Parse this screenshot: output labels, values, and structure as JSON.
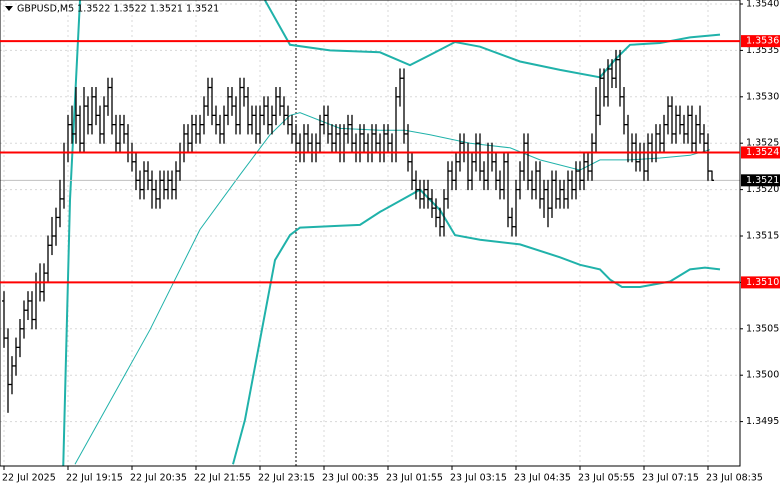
{
  "chart_data": {
    "type": "ohlc",
    "title": "GBPUSD,M5 1.3522 1.3522 1.3521 1.3521",
    "categories": [
      "22 Jul 2025",
      null,
      null,
      null,
      null,
      null,
      null,
      null,
      null,
      null,
      null,
      null,
      null,
      null,
      null,
      null,
      "22 Jul 19:15",
      null,
      null,
      null,
      null,
      null,
      null,
      null,
      null,
      null,
      null,
      null,
      null,
      null,
      null,
      null,
      "22 Jul 20:35",
      null,
      null,
      null,
      null,
      null,
      null,
      null,
      null,
      null,
      null,
      null,
      null,
      null,
      null,
      null,
      "22 Jul 21:55",
      null,
      null,
      null,
      null,
      null,
      null,
      null,
      null,
      null,
      null,
      null,
      null,
      null,
      null,
      null,
      "22 Jul 23:15",
      null,
      null,
      null,
      null,
      null,
      null,
      null,
      null,
      null,
      null,
      null,
      null,
      null,
      null,
      null,
      "23 Jul 00:35",
      null,
      null,
      null,
      null,
      null,
      null,
      null,
      null,
      null,
      null,
      null,
      null,
      null,
      null,
      null,
      "23 Jul 01:55",
      null,
      null,
      null,
      null,
      null,
      null,
      null,
      null,
      null,
      null,
      null,
      null,
      null,
      null,
      null,
      "23 Jul 03:15",
      null,
      null,
      null,
      null,
      null,
      null,
      null,
      null,
      null,
      null,
      null,
      null,
      null,
      null,
      null,
      "23 Jul 04:35",
      null,
      null,
      null,
      null,
      null,
      null,
      null,
      null,
      null,
      null,
      null,
      null,
      null,
      null,
      null,
      "23 Jul 05:55",
      null,
      null,
      null,
      null,
      null,
      null,
      null,
      null,
      null,
      null,
      null,
      null,
      null,
      null,
      null,
      "23 Jul 07:15",
      null,
      null,
      null,
      null,
      null,
      null,
      null,
      null,
      null,
      null,
      null,
      null,
      null,
      null,
      null,
      "23 Jul 08:35",
      null
    ],
    "open": [
      1.3508,
      1.3504,
      1.3499,
      1.3501,
      1.3503,
      1.3505,
      1.3507,
      1.3508,
      1.3506,
      1.351,
      1.3509,
      1.3511,
      1.3514,
      1.3515,
      1.3517,
      1.3519,
      1.3524,
      1.3527,
      1.3526,
      1.3528,
      1.3525,
      1.3529,
      1.3527,
      1.353,
      1.3528,
      1.3526,
      1.3529,
      1.3531,
      1.3527,
      1.3525,
      1.3527,
      1.3526,
      1.3524,
      1.3523,
      1.3521,
      1.352,
      1.3522,
      1.3521,
      1.352,
      1.3519,
      1.3521,
      1.352,
      1.3521,
      1.352,
      1.3522,
      1.3524,
      1.3526,
      1.3525,
      1.3527,
      1.3526,
      1.3527,
      1.3529,
      1.3531,
      1.3528,
      1.3527,
      1.3526,
      1.3528,
      1.353,
      1.3529,
      1.3527,
      1.3531,
      1.353,
      1.3527,
      1.3528,
      1.3526,
      1.3528,
      1.3529,
      1.3527,
      1.3528,
      1.353,
      1.3529,
      1.3528,
      1.3527,
      1.3526,
      1.3525,
      1.3524,
      1.3526,
      1.3525,
      1.3524,
      1.3525,
      1.3527,
      1.3528,
      1.3526,
      1.3525,
      1.3526,
      1.3524,
      1.3526,
      1.3527,
      1.3525,
      1.3524,
      1.3526,
      1.3525,
      1.3524,
      1.3526,
      1.3525,
      1.3524,
      1.3526,
      1.3525,
      1.3524,
      1.353,
      1.3532,
      1.3526,
      1.3523,
      1.3521,
      1.352,
      1.3519,
      1.352,
      1.3519,
      1.3518,
      1.3517,
      1.3516,
      1.3519,
      1.3522,
      1.3521,
      1.3523,
      1.3525,
      1.3524,
      1.3521,
      1.3523,
      1.3525,
      1.3522,
      1.3521,
      1.3524,
      1.3523,
      1.3521,
      1.352,
      1.3523,
      1.3517,
      1.3516,
      1.352,
      1.3522,
      1.3525,
      1.3521,
      1.352,
      1.3522,
      1.3519,
      1.352,
      1.3518,
      1.3521,
      1.3519,
      1.352,
      1.3519,
      1.3521,
      1.352,
      1.3522,
      1.3521,
      1.3523,
      1.3522,
      1.3525,
      1.3528,
      1.3532,
      1.353,
      1.3533,
      1.3532,
      1.3534,
      1.353,
      1.3527,
      1.3524,
      1.3525,
      1.3523,
      1.3524,
      1.3522,
      1.3525,
      1.3524,
      1.3526,
      1.3525,
      1.3527,
      1.3529,
      1.3526,
      1.3528,
      1.3527,
      1.3526,
      1.3528,
      1.3525,
      1.3527,
      1.3526,
      1.3525,
      1.3522
    ],
    "high": [
      1.3509,
      1.3505,
      1.3502,
      1.3504,
      1.3506,
      1.3508,
      1.3509,
      1.3509,
      1.3511,
      1.3512,
      1.3512,
      1.3515,
      1.3517,
      1.3518,
      1.3521,
      1.3525,
      1.3528,
      1.3529,
      1.3531,
      1.3529,
      1.3531,
      1.353,
      1.3531,
      1.3531,
      1.3529,
      1.353,
      1.3532,
      1.3532,
      1.3528,
      1.3528,
      1.3528,
      1.3527,
      1.3525,
      1.3524,
      1.3522,
      1.3523,
      1.3523,
      1.3522,
      1.3521,
      1.3522,
      1.3522,
      1.3522,
      1.3522,
      1.3523,
      1.3525,
      1.3527,
      1.3527,
      1.3528,
      1.3528,
      1.3528,
      1.353,
      1.3532,
      1.3532,
      1.3529,
      1.3528,
      1.3529,
      1.3531,
      1.3531,
      1.353,
      1.3532,
      1.3532,
      1.3531,
      1.3529,
      1.3529,
      1.3529,
      1.353,
      1.353,
      1.3529,
      1.3531,
      1.3531,
      1.353,
      1.3529,
      1.3528,
      1.3527,
      1.3526,
      1.3527,
      1.3527,
      1.3526,
      1.3526,
      1.3528,
      1.3529,
      1.3529,
      1.3527,
      1.3527,
      1.3527,
      1.3527,
      1.3528,
      1.3528,
      1.3526,
      1.3527,
      1.3527,
      1.3526,
      1.3527,
      1.3527,
      1.3526,
      1.3527,
      1.3527,
      1.3526,
      1.3531,
      1.3533,
      1.3533,
      1.3527,
      1.3524,
      1.3522,
      1.3521,
      1.3521,
      1.3521,
      1.352,
      1.3519,
      1.3518,
      1.352,
      1.3523,
      1.3523,
      1.3524,
      1.3526,
      1.3526,
      1.3525,
      1.3524,
      1.3526,
      1.3526,
      1.3523,
      1.3525,
      1.3525,
      1.3524,
      1.3522,
      1.3524,
      1.3524,
      1.3518,
      1.3521,
      1.3523,
      1.3526,
      1.3526,
      1.3522,
      1.3523,
      1.3523,
      1.3521,
      1.3521,
      1.3522,
      1.3522,
      1.3521,
      1.3521,
      1.3522,
      1.3522,
      1.3523,
      1.3523,
      1.3524,
      1.3524,
      1.3526,
      1.3531,
      1.3533,
      1.3533,
      1.3534,
      1.3534,
      1.3535,
      1.3535,
      1.3531,
      1.3528,
      1.3526,
      1.3526,
      1.3525,
      1.3525,
      1.3526,
      1.3526,
      1.3527,
      1.3527,
      1.3528,
      1.353,
      1.353,
      1.3529,
      1.3529,
      1.3528,
      1.3529,
      1.3529,
      1.3528,
      1.3529,
      1.3527,
      1.3526,
      1.3522
    ],
    "low": [
      1.3503,
      1.3496,
      1.3498,
      1.35,
      1.3502,
      1.3504,
      1.3506,
      1.3505,
      1.3505,
      1.3508,
      1.3508,
      1.351,
      1.3513,
      1.3514,
      1.3516,
      1.3518,
      1.3523,
      1.3525,
      1.3525,
      1.3524,
      1.3524,
      1.3526,
      1.3526,
      1.3527,
      1.3525,
      1.3525,
      1.3528,
      1.3526,
      1.3524,
      1.3524,
      1.3525,
      1.3523,
      1.3522,
      1.352,
      1.3519,
      1.3519,
      1.352,
      1.3518,
      1.3518,
      1.3518,
      1.3519,
      1.3519,
      1.3519,
      1.3519,
      1.3521,
      1.3523,
      1.3524,
      1.3524,
      1.3525,
      1.3525,
      1.3526,
      1.3528,
      1.3527,
      1.3526,
      1.3525,
      1.3525,
      1.3527,
      1.3528,
      1.3526,
      1.3526,
      1.3529,
      1.3526,
      1.3526,
      1.3525,
      1.3525,
      1.3527,
      1.3526,
      1.3526,
      1.3527,
      1.3528,
      1.3527,
      1.3526,
      1.3525,
      1.3524,
      1.3523,
      1.3523,
      1.3524,
      1.3523,
      1.3523,
      1.3524,
      1.3526,
      1.3525,
      1.3524,
      1.3524,
      1.3523,
      1.3523,
      1.3525,
      1.3524,
      1.3523,
      1.3523,
      1.3524,
      1.3523,
      1.3523,
      1.3524,
      1.3523,
      1.3523,
      1.3524,
      1.3523,
      1.3523,
      1.3529,
      1.3525,
      1.3522,
      1.352,
      1.3519,
      1.3518,
      1.3518,
      1.3518,
      1.3517,
      1.3516,
      1.3515,
      1.3515,
      1.3518,
      1.352,
      1.352,
      1.3522,
      1.3523,
      1.352,
      1.352,
      1.3522,
      1.3521,
      1.352,
      1.352,
      1.3522,
      1.352,
      1.3519,
      1.3519,
      1.3516,
      1.3515,
      1.3515,
      1.3519,
      1.3521,
      1.352,
      1.3519,
      1.3519,
      1.3518,
      1.3517,
      1.3516,
      1.3517,
      1.3518,
      1.3518,
      1.3518,
      1.3518,
      1.3519,
      1.3519,
      1.352,
      1.352,
      1.3521,
      1.3521,
      1.3524,
      1.3527,
      1.3529,
      1.3529,
      1.3531,
      1.3531,
      1.3529,
      1.3526,
      1.3523,
      1.3523,
      1.3522,
      1.3522,
      1.3521,
      1.3521,
      1.3523,
      1.3523,
      1.3524,
      1.3524,
      1.3526,
      1.3525,
      1.3525,
      1.3526,
      1.3525,
      1.3525,
      1.3524,
      1.3524,
      1.3525,
      1.3524,
      1.3521,
      1.3521
    ],
    "close": [
      1.3504,
      1.3499,
      1.3501,
      1.3503,
      1.3505,
      1.3507,
      1.3508,
      1.3506,
      1.351,
      1.3509,
      1.3511,
      1.3514,
      1.3515,
      1.3517,
      1.3519,
      1.3524,
      1.3527,
      1.3526,
      1.3528,
      1.3525,
      1.3529,
      1.3527,
      1.353,
      1.3528,
      1.3526,
      1.3529,
      1.3531,
      1.3527,
      1.3525,
      1.3527,
      1.3526,
      1.3524,
      1.3523,
      1.3521,
      1.352,
      1.3522,
      1.3521,
      1.352,
      1.3519,
      1.3521,
      1.352,
      1.3521,
      1.352,
      1.3522,
      1.3524,
      1.3526,
      1.3525,
      1.3527,
      1.3526,
      1.3527,
      1.3529,
      1.3531,
      1.3528,
      1.3527,
      1.3526,
      1.3528,
      1.353,
      1.3529,
      1.3527,
      1.3531,
      1.353,
      1.3527,
      1.3528,
      1.3526,
      1.3528,
      1.3529,
      1.3527,
      1.3528,
      1.353,
      1.3529,
      1.3528,
      1.3527,
      1.3526,
      1.3525,
      1.3524,
      1.3526,
      1.3525,
      1.3524,
      1.3525,
      1.3527,
      1.3528,
      1.3526,
      1.3525,
      1.3526,
      1.3524,
      1.3526,
      1.3527,
      1.3525,
      1.3524,
      1.3526,
      1.3525,
      1.3524,
      1.3526,
      1.3525,
      1.3524,
      1.3526,
      1.3525,
      1.3524,
      1.353,
      1.3532,
      1.3526,
      1.3523,
      1.3521,
      1.352,
      1.3519,
      1.352,
      1.3519,
      1.3518,
      1.3517,
      1.3516,
      1.3519,
      1.3522,
      1.3521,
      1.3523,
      1.3525,
      1.3524,
      1.3521,
      1.3523,
      1.3525,
      1.3522,
      1.3521,
      1.3524,
      1.3523,
      1.3521,
      1.352,
      1.3523,
      1.3517,
      1.3516,
      1.352,
      1.3522,
      1.3525,
      1.3521,
      1.352,
      1.3522,
      1.3519,
      1.352,
      1.3518,
      1.3521,
      1.3519,
      1.352,
      1.3519,
      1.3521,
      1.352,
      1.3522,
      1.3521,
      1.3523,
      1.3522,
      1.3525,
      1.3528,
      1.3532,
      1.353,
      1.3533,
      1.3532,
      1.3534,
      1.353,
      1.3527,
      1.3524,
      1.3525,
      1.3523,
      1.3524,
      1.3522,
      1.3525,
      1.3524,
      1.3526,
      1.3525,
      1.3527,
      1.3529,
      1.3526,
      1.3528,
      1.3527,
      1.3526,
      1.3528,
      1.3525,
      1.3527,
      1.3526,
      1.3525,
      1.3522,
      1.3521
    ],
    "bar_color": "#000000",
    "bands": [
      {
        "color": "#20b2aa",
        "x": [
          14.8,
          16.5,
          19,
          42,
          65.25,
          71.5,
          81.5,
          94,
          101.5,
          106.5,
          112.75,
          119,
          129,
          139,
          149,
          152.75,
          156.5,
          164,
          171.5,
          179
        ],
        "values": [
          1.349,
          1.35189,
          1.35404,
          null,
          1.35404,
          1.35356,
          1.3535,
          1.35348,
          1.35334,
          1.35345,
          1.35359,
          1.35354,
          1.35338,
          1.35329,
          1.35321,
          1.3534,
          1.35356,
          1.35358,
          1.35364,
          1.35367
        ]
      },
      {
        "color": "#20b2aa",
        "x": [
          17.75,
          36.5,
          49,
          59,
          66.5,
          71.5,
          74,
          84,
          94,
          100.25,
          106.5,
          116.5,
          126.5,
          134,
          144,
          149,
          156.5,
          164,
          171.5,
          176.5
        ],
        "values": [
          1.34904,
          1.35049,
          1.35157,
          1.35216,
          1.35259,
          1.3528,
          1.35283,
          1.35266,
          1.35264,
          1.35264,
          1.35259,
          1.3525,
          1.35245,
          1.35232,
          1.35221,
          1.35232,
          1.35232,
          1.35234,
          1.35237,
          1.35243
        ]
      },
      {
        "color": "#20b2aa",
        "x": [
          57.25,
          60.25,
          64,
          67.75,
          71.5,
          74,
          84,
          89,
          94,
          101.5,
          104,
          109,
          112.75,
          119,
          129,
          139,
          144,
          149,
          151.5,
          154.5,
          159,
          166.5,
          171.5,
          175.25,
          179
        ],
        "values": [
          1.34904,
          1.34952,
          1.35038,
          1.35124,
          1.35151,
          1.35159,
          1.35161,
          1.35162,
          1.35176,
          1.35194,
          1.352,
          1.35178,
          1.35151,
          1.35146,
          1.35141,
          1.35127,
          1.35119,
          1.35114,
          1.35103,
          1.35095,
          1.35095,
          1.35101,
          1.35114,
          1.35116,
          1.35114
        ]
      }
    ],
    "levels": [
      {
        "value": 1.3536,
        "color": "#ff0000"
      },
      {
        "value": 1.3524,
        "color": "#ff0000"
      },
      {
        "value": {
          "value": 1.351,
          "label": "1.3510"
        },
        "color": "#ff0000"
      }
    ],
    "current_price": {
      "value": 1.3521,
      "color": "#c0c0c0"
    },
    "ylim": [
      1.349,
      1.354
    ],
    "yticks": [
      1.3495,
      {
        "value": 1.35,
        "label": "1.3500"
      },
      1.3505,
      {
        "value": 1.351,
        "label": "1.3510"
      },
      1.3515,
      {
        "value": 1.352,
        "label": "1.3520"
      },
      1.3525,
      {
        "value": 1.353,
        "label": "1.3530"
      },
      1.3535,
      {
        "value": 1.354,
        "label": "1.3540"
      }
    ],
    "grid": true
  }
}
